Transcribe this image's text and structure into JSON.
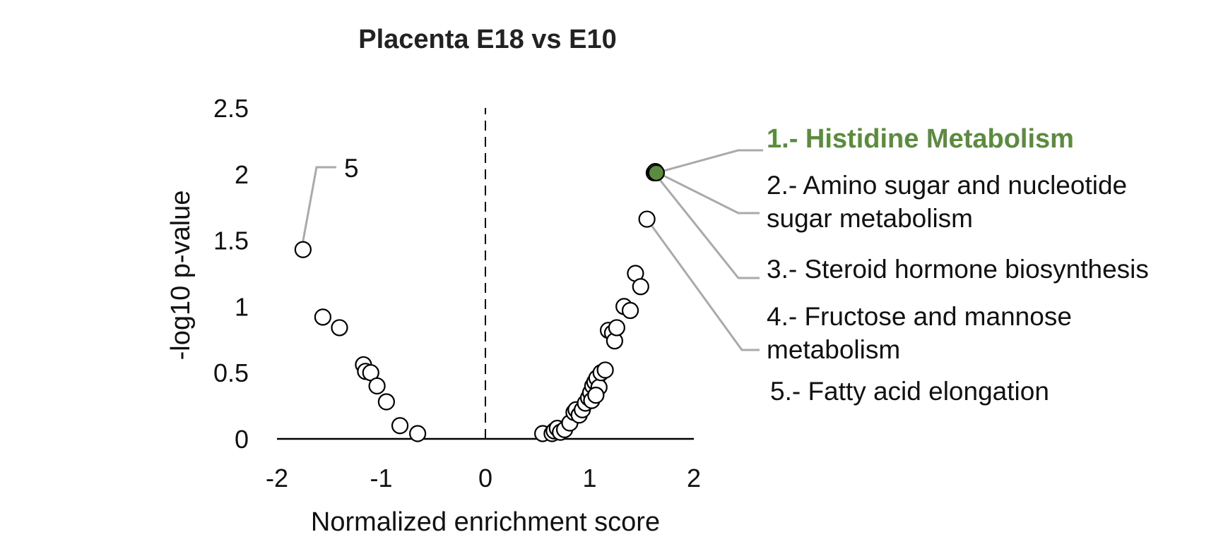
{
  "chart_data": {
    "type": "scatter",
    "title": "Placenta E18 vs E10",
    "xlabel": "Normalized enrichment score",
    "ylabel": "-log10 p-value",
    "xlim": [
      -2,
      2
    ],
    "ylim": [
      0,
      2.5
    ],
    "x_ticks": [
      "-2",
      "-1",
      "0",
      "1",
      "2"
    ],
    "y_ticks": [
      "0",
      "0.5",
      "1",
      "1.5",
      "2",
      "2.5"
    ],
    "zero_line": "dashed vertical line at x = 0",
    "marker": "open circle",
    "highlight_color": "#5b8c3e",
    "leader_color": "#aaaaaa",
    "points": [
      {
        "x": -1.75,
        "y": 1.43
      },
      {
        "x": -1.56,
        "y": 0.92
      },
      {
        "x": -1.4,
        "y": 0.84
      },
      {
        "x": -1.17,
        "y": 0.56
      },
      {
        "x": -1.15,
        "y": 0.51
      },
      {
        "x": -1.1,
        "y": 0.5
      },
      {
        "x": -1.04,
        "y": 0.4
      },
      {
        "x": -0.95,
        "y": 0.28
      },
      {
        "x": -0.82,
        "y": 0.1
      },
      {
        "x": -0.65,
        "y": 0.04
      },
      {
        "x": 0.55,
        "y": 0.04
      },
      {
        "x": 0.64,
        "y": 0.04
      },
      {
        "x": 0.66,
        "y": 0.06
      },
      {
        "x": 0.69,
        "y": 0.08
      },
      {
        "x": 0.72,
        "y": 0.05
      },
      {
        "x": 0.76,
        "y": 0.07
      },
      {
        "x": 0.81,
        "y": 0.12
      },
      {
        "x": 0.85,
        "y": 0.2
      },
      {
        "x": 0.87,
        "y": 0.22
      },
      {
        "x": 0.9,
        "y": 0.18
      },
      {
        "x": 0.93,
        "y": 0.22
      },
      {
        "x": 0.96,
        "y": 0.27
      },
      {
        "x": 0.99,
        "y": 0.31
      },
      {
        "x": 1.01,
        "y": 0.35
      },
      {
        "x": 1.03,
        "y": 0.4
      },
      {
        "x": 1.05,
        "y": 0.43
      },
      {
        "x": 1.07,
        "y": 0.46
      },
      {
        "x": 1.09,
        "y": 0.39
      },
      {
        "x": 1.02,
        "y": 0.29
      },
      {
        "x": 1.06,
        "y": 0.33
      },
      {
        "x": 1.11,
        "y": 0.5
      },
      {
        "x": 1.15,
        "y": 0.52
      },
      {
        "x": 1.18,
        "y": 0.82
      },
      {
        "x": 1.22,
        "y": 0.8
      },
      {
        "x": 1.24,
        "y": 0.74
      },
      {
        "x": 1.26,
        "y": 0.84
      },
      {
        "x": 1.33,
        "y": 1.0
      },
      {
        "x": 1.39,
        "y": 0.97
      },
      {
        "x": 1.44,
        "y": 1.25
      },
      {
        "x": 1.49,
        "y": 1.15
      },
      {
        "x": 1.55,
        "y": 1.66,
        "label_id": 4
      },
      {
        "x": 1.62,
        "y": 2.01,
        "label_id": 3
      },
      {
        "x": 1.63,
        "y": 2.02,
        "label_id": 2
      },
      {
        "x": 1.64,
        "y": 2.01,
        "label_id": 1,
        "highlight": true
      }
    ],
    "callout": {
      "text": "5",
      "point": {
        "x": -1.75,
        "y": 1.43
      }
    },
    "legend": [
      {
        "lines": [
          "1.- Histidine Metabolism"
        ],
        "highlight": true
      },
      {
        "lines": [
          "2.- Amino sugar and nucleotide",
          "sugar metabolism"
        ]
      },
      {
        "lines": [
          "3.- Steroid hormone biosynthesis"
        ]
      },
      {
        "lines": [
          "4.- Fructose and mannose",
          "metabolism"
        ]
      },
      {
        "lines": [
          "5.- Fatty acid elongation"
        ]
      }
    ]
  }
}
